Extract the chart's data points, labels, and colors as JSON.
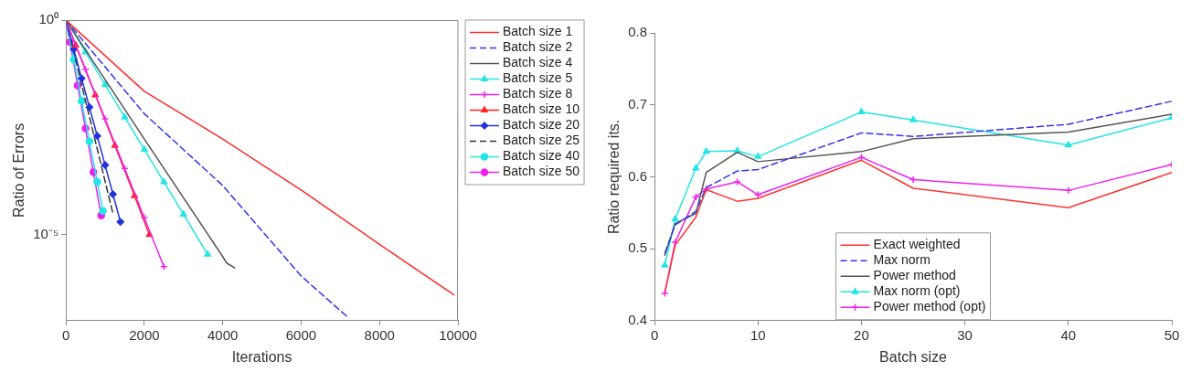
{
  "chart_data": [
    {
      "type": "line",
      "xlabel": "Iterations",
      "ylabel": "Ratio of Errors",
      "log": "y",
      "grid": false,
      "legend": "right",
      "xlim": [
        0,
        10000
      ],
      "xticks": [
        0,
        2000,
        4000,
        6000,
        8000,
        10000
      ],
      "ylim": [
        1e-07,
        1
      ],
      "yticks": [
        {
          "value": 1,
          "label": "10⁰"
        },
        {
          "value": 1e-05,
          "label": "10⁻⁵"
        }
      ],
      "series": [
        {
          "name": "Batch size 1",
          "color": "#ff2a2a",
          "x": [
            0,
            2000,
            4000,
            6000,
            8000,
            9900
          ],
          "values": [
            1,
            0.022,
            0.0017,
            0.00011,
            6e-06,
            4e-07
          ]
        },
        {
          "name": "Batch size 2",
          "color": "#3333ee",
          "line_style": "dashed",
          "x": [
            0,
            2000,
            4000,
            6000,
            7190
          ],
          "values": [
            1,
            0.0066,
            0.00014,
            1.1e-06,
            1.2e-07
          ]
        },
        {
          "name": "Batch size 4",
          "color": "#555555",
          "x": [
            0,
            2000,
            4000,
            4100,
            4300
          ],
          "values": [
            1,
            0.0017,
            3.1e-06,
            2.2e-06,
            1.7e-06
          ]
        },
        {
          "name": "Batch size 5",
          "color": "#22e5e5",
          "marker": "triangle",
          "x": [
            0,
            500,
            1000,
            1500,
            2000,
            2500,
            3000,
            3615
          ],
          "values": [
            1,
            0.18,
            0.031,
            0.0055,
            0.00097,
            0.00017,
            3e-05,
            3.5e-06
          ]
        },
        {
          "name": "Batch size 8",
          "color": "#ee22ee",
          "marker": "cross",
          "x": [
            0,
            500,
            1000,
            1500,
            2000,
            2500
          ],
          "values": [
            1,
            0.071,
            0.005,
            0.00035,
            2.5e-05,
            1.8e-06
          ]
        },
        {
          "name": "Batch size 10",
          "color": "#ff2222",
          "marker": "triangle",
          "x": [
            0,
            250,
            750,
            1250,
            1750,
            2130
          ],
          "values": [
            1,
            0.26,
            0.018,
            0.0012,
            8.1e-05,
            1e-05
          ]
        },
        {
          "name": "Batch size 20",
          "color": "#2233dd",
          "marker": "diamond",
          "x": [
            0,
            200,
            400,
            600,
            800,
            1000,
            1200,
            1391
          ],
          "values": [
            1,
            0.21,
            0.044,
            0.0094,
            0.002,
            0.00042,
            8.8e-05,
            2e-05
          ]
        },
        {
          "name": "Batch size 25",
          "color": "#333333",
          "line_style": "dashed",
          "x": [
            0,
            600,
            1193
          ],
          "values": [
            1,
            0.0056,
            3.3e-05
          ]
        },
        {
          "name": "Batch size 40",
          "color": "#22e5e5",
          "marker": "circle",
          "x": [
            0,
            200,
            400,
            600,
            800,
            944
          ],
          "values": [
            1,
            0.12,
            0.013,
            0.0015,
            0.00017,
            3.6e-05
          ]
        },
        {
          "name": "Batch size 50",
          "color": "#ee22ee",
          "marker": "circle",
          "x": [
            0,
            100,
            300,
            500,
            700,
            900
          ],
          "values": [
            1,
            0.31,
            0.03,
            0.003,
            0.00029,
            2.8e-05
          ]
        }
      ]
    },
    {
      "type": "line",
      "xlabel": "Batch size",
      "ylabel": "Ratio required its.",
      "grid": false,
      "legend": "bottom",
      "xlim": [
        0,
        50
      ],
      "xticks": [
        0,
        10,
        20,
        30,
        40,
        50
      ],
      "ylim": [
        0.4,
        0.8
      ],
      "yticks": [
        0.4,
        0.5,
        0.6,
        0.7,
        0.8
      ],
      "x": [
        1,
        2,
        4,
        5,
        8,
        10,
        20,
        25,
        40,
        50
      ],
      "series": [
        {
          "name": "Exact weighted",
          "color": "#ff3333",
          "values": [
            0.44,
            0.505,
            0.544,
            0.582,
            0.566,
            0.57,
            0.623,
            0.584,
            0.557,
            0.606
          ]
        },
        {
          "name": "Max norm",
          "color": "#3333ee",
          "line_style": "dashed",
          "values": [
            0.494,
            0.533,
            0.552,
            0.585,
            0.608,
            0.61,
            0.661,
            0.656,
            0.673,
            0.705
          ]
        },
        {
          "name": "Power method",
          "color": "#555555",
          "values": [
            0.491,
            0.535,
            0.549,
            0.606,
            0.634,
            0.621,
            0.635,
            0.653,
            0.662,
            0.687
          ]
        },
        {
          "name": "Max norm (opt)",
          "color": "#22e5e5",
          "marker": "triangle",
          "values": [
            0.477,
            0.541,
            0.612,
            0.635,
            0.636,
            0.628,
            0.69,
            0.679,
            0.644,
            0.682
          ]
        },
        {
          "name": "Power method (opt)",
          "color": "#ee22ee",
          "marker": "cross",
          "values": [
            0.438,
            0.509,
            0.572,
            0.583,
            0.593,
            0.575,
            0.627,
            0.596,
            0.581,
            0.617
          ]
        }
      ]
    }
  ]
}
